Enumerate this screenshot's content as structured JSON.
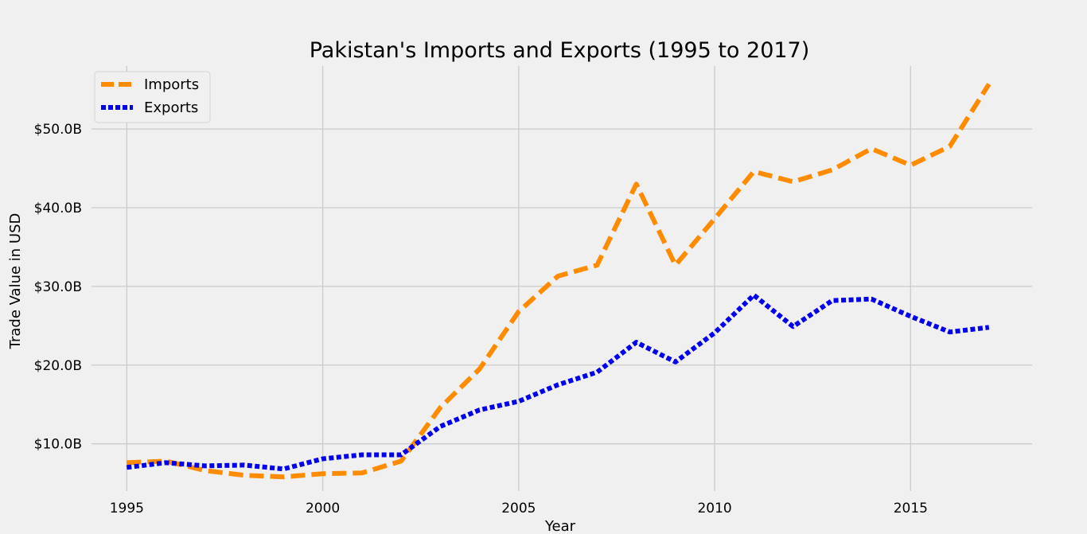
{
  "chart_data": {
    "type": "line",
    "title": "Pakistan's Imports and Exports (1995 to 2017)",
    "xlabel": "Year",
    "ylabel": "Trade Value in USD",
    "x": [
      1995,
      1996,
      1997,
      1998,
      1999,
      2000,
      2001,
      2002,
      2003,
      2004,
      2005,
      2006,
      2007,
      2008,
      2009,
      2010,
      2011,
      2012,
      2013,
      2014,
      2015,
      2016,
      2017
    ],
    "xlim": [
      1994.1,
      2018.1
    ],
    "ylim": [
      4.0,
      58.0
    ],
    "x_ticks": [
      1995,
      2000,
      2005,
      2010,
      2015
    ],
    "y_ticks": [
      10,
      20,
      30,
      40,
      50
    ],
    "x_tick_labels": [
      "1995",
      "2000",
      "2005",
      "2010",
      "2015"
    ],
    "y_tick_labels": [
      "$10.0B",
      "$20.0B",
      "$30.0B",
      "$40.0B",
      "$50.0B"
    ],
    "y_unit": "billion USD",
    "grid": true,
    "legend_position": "top-left",
    "series": [
      {
        "name": "Imports",
        "color": "#ff8c00",
        "style": "dashed",
        "values": [
          7.6,
          7.8,
          6.6,
          6.0,
          5.8,
          6.2,
          6.3,
          7.8,
          14.6,
          19.5,
          26.8,
          31.3,
          32.7,
          43.0,
          32.7,
          38.6,
          44.6,
          43.3,
          44.8,
          47.5,
          45.4,
          47.8,
          55.7
        ]
      },
      {
        "name": "Exports",
        "color": "#0000ee",
        "style": "dotted",
        "values": [
          7.0,
          7.6,
          7.2,
          7.3,
          6.8,
          8.1,
          8.6,
          8.6,
          12.2,
          14.3,
          15.4,
          17.5,
          19.1,
          22.9,
          20.4,
          24.1,
          28.9,
          24.9,
          28.2,
          28.4,
          26.2,
          24.2,
          24.8
        ]
      }
    ]
  }
}
